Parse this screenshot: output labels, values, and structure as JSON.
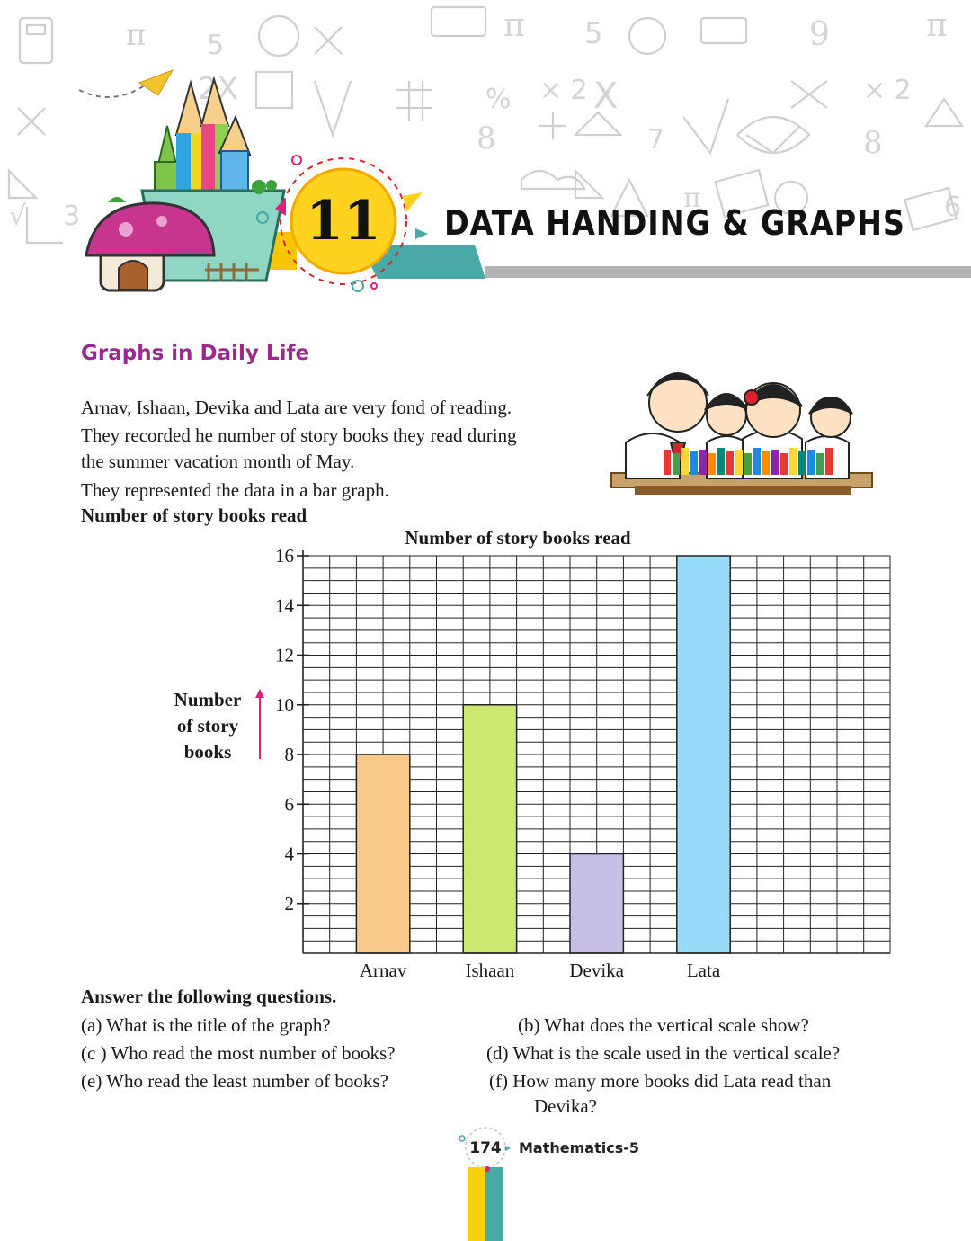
{
  "header": {
    "chapter_number": "11",
    "chapter_title": "DATA HANDING & GRAPHS"
  },
  "section": {
    "heading": "Graphs in Daily Life",
    "intro_lines": [
      "Arnav, Ishaan, Devika and Lata are very fond of reading.",
      "They recorded he number of story books they read during",
      "the summer vacation month of May.",
      "They represented the data in a bar graph."
    ],
    "graph_caption": "Number of story books read"
  },
  "chart_data": {
    "type": "bar",
    "title": "Number of story books read",
    "xlabel": "",
    "ylabel": "Number of story books",
    "ylabel_lines": [
      "Number",
      "of story",
      "books"
    ],
    "categories": [
      "Arnav",
      "Ishaan",
      "Devika",
      "Lata"
    ],
    "values": [
      8,
      10,
      4,
      16
    ],
    "bar_colors": [
      "#f9c98a",
      "#cce86e",
      "#c8bfe6",
      "#96dcf8"
    ],
    "ylim": [
      0,
      16
    ],
    "yticks": [
      2,
      4,
      6,
      8,
      10,
      12,
      14,
      16
    ],
    "grid": true,
    "grid_step": 1
  },
  "questions": {
    "heading": "Answer the following questions.",
    "a": "(a)  What is the title of the graph?",
    "b": "(b)  What does the vertical scale show?",
    "c": "(c )  Who read the most number of books?",
    "d": "(d)  What is the scale used in the vertical scale?",
    "e": "(e)   Who read the least number of books?",
    "f_line1": "(f)   How many more books did Lata read than",
    "f_line2": "Devika?"
  },
  "footer": {
    "page_number": "174",
    "book_name": "Mathematics-5"
  },
  "colors": {
    "heading_purple": "#9b2a8f",
    "accent_yellow": "#f7c600",
    "accent_teal": "#4aa9a6",
    "axis_arrow_pink": "#d6247a"
  }
}
